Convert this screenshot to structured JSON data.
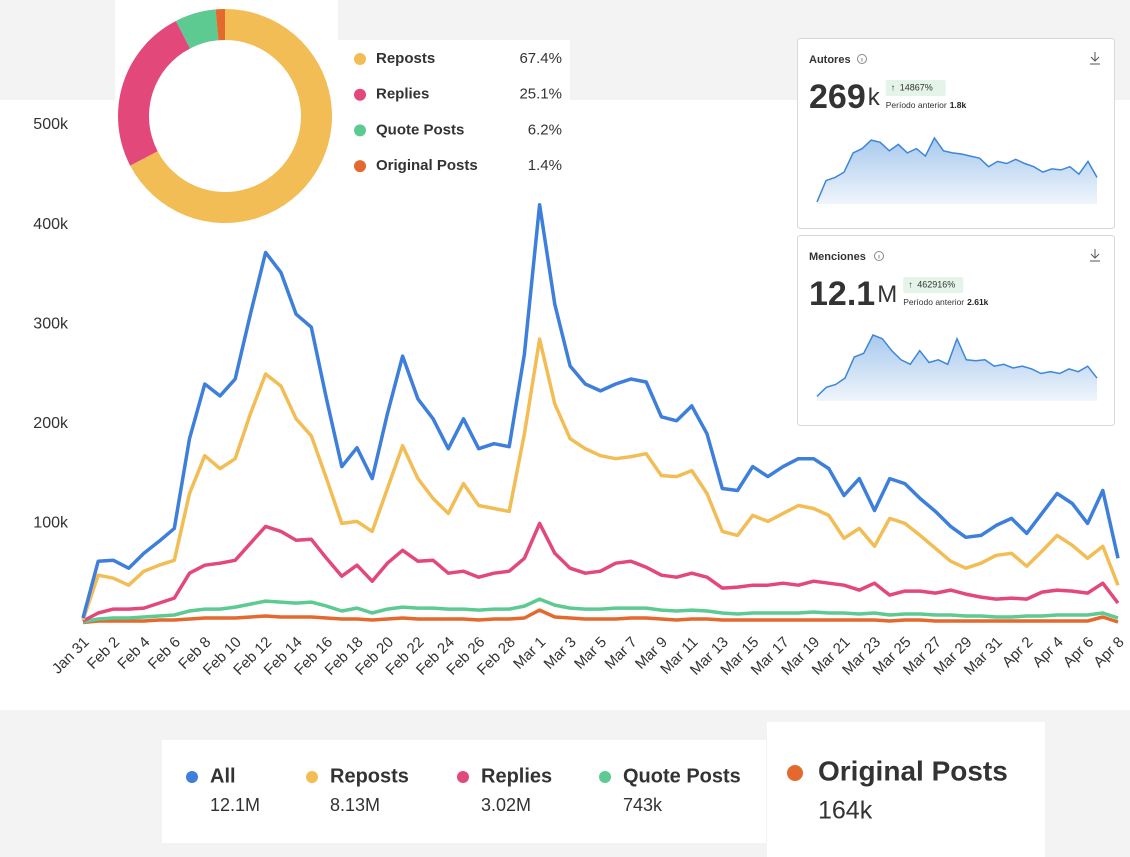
{
  "chart_data": [
    {
      "type": "line",
      "categories": [
        "Jan 31",
        null,
        "Feb 2",
        null,
        "Feb 4",
        null,
        "Feb 6",
        null,
        "Feb 8",
        null,
        "Feb 10",
        null,
        "Feb 12",
        null,
        "Feb 14",
        null,
        "Feb 16",
        null,
        "Feb 18",
        null,
        "Feb 20",
        null,
        "Feb 22",
        null,
        "Feb 24",
        null,
        "Feb 26",
        null,
        "Feb 28",
        null,
        "Mar 1",
        null,
        "Mar 3",
        null,
        "Mar 5",
        null,
        "Mar 7",
        null,
        "Mar 9",
        null,
        "Mar 11",
        null,
        "Mar 13",
        null,
        "Mar 15",
        null,
        "Mar 17",
        null,
        "Mar 19",
        null,
        "Mar 21",
        null,
        "Mar 23",
        null,
        "Mar 25",
        null,
        "Mar 27",
        null,
        "Mar 29",
        null,
        "Mar 31",
        null,
        "Apr 2",
        null,
        "Apr 4",
        null,
        "Apr 6",
        null,
        "Apr 8"
      ],
      "ylim": [
        0,
        500000
      ],
      "yticks": [
        {
          "value": 100000,
          "label": "100k"
        },
        {
          "value": 200000,
          "label": "200k"
        },
        {
          "value": 300000,
          "label": "300k"
        },
        {
          "value": 400000,
          "label": "400k"
        },
        {
          "value": 500000,
          "label": "500k"
        }
      ],
      "grid": false,
      "series": [
        {
          "name": "All",
          "color": "#3d7fdb",
          "total": "12.1M",
          "values": [
            5000,
            62000,
            63000,
            55000,
            70000,
            82000,
            95000,
            185000,
            240000,
            228000,
            245000,
            310000,
            372000,
            352000,
            310000,
            297000,
            225000,
            157000,
            176000,
            145000,
            210000,
            268000,
            225000,
            205000,
            175000,
            205000,
            175000,
            180000,
            177000,
            270000,
            420000,
            320000,
            258000,
            240000,
            233000,
            240000,
            245000,
            242000,
            207000,
            203000,
            218000,
            190000,
            135000,
            133000,
            157000,
            147000,
            157000,
            165000,
            165000,
            155000,
            128000,
            145000,
            113000,
            145000,
            140000,
            125000,
            112000,
            97000,
            86000,
            88000,
            98000,
            105000,
            90000,
            110000,
            130000,
            120000,
            100000,
            133000,
            65000
          ]
        },
        {
          "name": "Reposts",
          "color": "#f2bd55",
          "total": "8.13M",
          "values": [
            3000,
            48000,
            45000,
            38000,
            52000,
            58000,
            63000,
            130000,
            168000,
            155000,
            165000,
            210000,
            250000,
            238000,
            205000,
            188000,
            145000,
            100000,
            102000,
            92000,
            135000,
            178000,
            145000,
            125000,
            110000,
            140000,
            118000,
            115000,
            112000,
            190000,
            285000,
            220000,
            185000,
            175000,
            168000,
            165000,
            167000,
            170000,
            148000,
            147000,
            153000,
            130000,
            92000,
            88000,
            108000,
            102000,
            110000,
            118000,
            115000,
            108000,
            85000,
            95000,
            77000,
            105000,
            100000,
            88000,
            75000,
            62000,
            55000,
            60000,
            68000,
            70000,
            57000,
            72000,
            88000,
            78000,
            65000,
            77000,
            38000
          ]
        },
        {
          "name": "Replies",
          "color": "#e3487b",
          "total": "3.02M",
          "values": [
            2000,
            10000,
            14000,
            14000,
            15000,
            20000,
            25000,
            50000,
            58000,
            60000,
            63000,
            80000,
            97000,
            92000,
            83000,
            84000,
            65000,
            47000,
            58000,
            42000,
            60000,
            73000,
            62000,
            63000,
            50000,
            52000,
            46000,
            50000,
            52000,
            65000,
            100000,
            70000,
            55000,
            50000,
            52000,
            60000,
            62000,
            56000,
            48000,
            46000,
            50000,
            46000,
            35000,
            36000,
            38000,
            38000,
            40000,
            38000,
            42000,
            40000,
            38000,
            33000,
            40000,
            28000,
            32000,
            32000,
            30000,
            33000,
            29000,
            26000,
            24000,
            25000,
            24000,
            31000,
            33000,
            32000,
            30000,
            40000,
            20000
          ]
        },
        {
          "name": "Quote Posts",
          "color": "#5dca92",
          "total": "743k",
          "values": [
            1000,
            4000,
            5000,
            5000,
            6000,
            7000,
            8000,
            12000,
            14000,
            14000,
            16000,
            19000,
            22000,
            21000,
            20000,
            21000,
            17000,
            12000,
            15000,
            10000,
            14000,
            16000,
            15000,
            15000,
            14000,
            14000,
            13000,
            14000,
            14000,
            17000,
            24000,
            18000,
            15000,
            14000,
            14000,
            15000,
            15000,
            15000,
            13000,
            12000,
            13000,
            12000,
            10000,
            9000,
            10000,
            10000,
            10000,
            10000,
            11000,
            10000,
            10000,
            9000,
            10000,
            8000,
            9000,
            9000,
            8000,
            8000,
            7000,
            7000,
            6000,
            6000,
            7000,
            7000,
            8000,
            8000,
            8000,
            10000,
            5000
          ]
        },
        {
          "name": "Original Posts",
          "color": "#e4692e",
          "total": "164k",
          "values": [
            500,
            2000,
            2000,
            2000,
            2000,
            3000,
            3000,
            4000,
            5000,
            5000,
            5000,
            6000,
            7000,
            6000,
            6000,
            6000,
            5000,
            4000,
            4000,
            3000,
            4000,
            5000,
            4000,
            4000,
            4000,
            4000,
            3000,
            4000,
            4000,
            5000,
            13000,
            6000,
            5000,
            4000,
            4000,
            4000,
            5000,
            5000,
            4000,
            3000,
            4000,
            4000,
            3000,
            3000,
            3000,
            3000,
            3000,
            3000,
            3000,
            3000,
            3000,
            3000,
            3000,
            2000,
            3000,
            3000,
            2000,
            2000,
            2000,
            2000,
            2000,
            2000,
            2000,
            2000,
            2000,
            2000,
            2000,
            6000,
            1000
          ]
        }
      ]
    },
    {
      "type": "pie",
      "categories": [
        "Reposts",
        "Replies",
        "Quote Posts",
        "Original Posts"
      ],
      "values": [
        67.4,
        25.1,
        6.2,
        1.4
      ],
      "value_labels": [
        "67.4%",
        "25.1%",
        "6.2%",
        "1.4%"
      ],
      "colors": [
        "#f2bd55",
        "#e3487b",
        "#5dca92",
        "#e4692e"
      ]
    },
    {
      "type": "area",
      "title": "Autores",
      "kpi": "269",
      "kpi_unit": "k",
      "change": "14867%",
      "previous_label": "Período anterior",
      "previous_value": "1.8k",
      "color": "#3d86d8",
      "values": [
        2,
        22,
        25,
        30,
        48,
        52,
        60,
        58,
        50,
        56,
        48,
        52,
        45,
        62,
        50,
        48,
        47,
        45,
        43,
        35,
        40,
        38,
        42,
        38,
        35,
        30,
        33,
        32,
        35,
        28,
        40,
        25
      ]
    },
    {
      "type": "area",
      "title": "Menciones",
      "kpi": "12.1",
      "kpi_unit": "M",
      "change": "462916%",
      "previous_label": "Período anterior",
      "previous_value": "2.61k",
      "color": "#3d86d8",
      "values": [
        5,
        15,
        18,
        25,
        48,
        52,
        72,
        68,
        55,
        45,
        40,
        55,
        42,
        45,
        40,
        68,
        45,
        44,
        45,
        38,
        40,
        36,
        38,
        35,
        30,
        32,
        30,
        35,
        32,
        38,
        25
      ]
    }
  ]
}
